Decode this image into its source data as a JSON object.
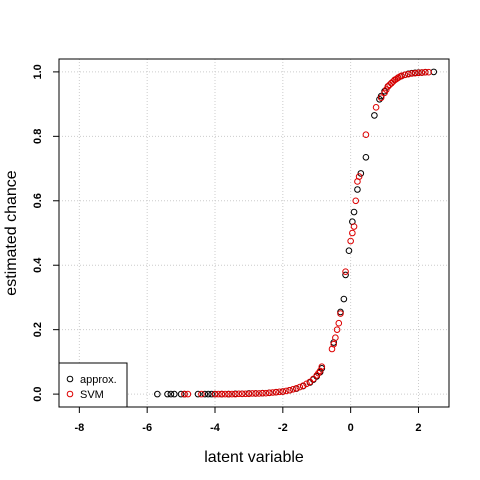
{
  "chart_data": {
    "type": "scatter",
    "xlabel": "latent variable",
    "ylabel": "estimated chance",
    "xlim": [
      -8.6,
      2.9
    ],
    "ylim": [
      -0.04,
      1.04
    ],
    "x_ticks": [
      -8,
      -6,
      -4,
      -2,
      0,
      2
    ],
    "y_ticks": [
      0.0,
      0.2,
      0.4,
      0.6,
      0.8,
      1.0
    ],
    "x_tick_labels": [
      "-8",
      "-6",
      "-4",
      "-2",
      "0",
      "2"
    ],
    "y_tick_labels": [
      "0.0",
      "0.2",
      "0.4",
      "0.6",
      "0.8",
      "1.0"
    ],
    "grid": true,
    "legend_position": "bottom-left",
    "series": [
      {
        "name": "approx.",
        "color": "#000000",
        "marker": "open-circle",
        "points": [
          [
            -5.7,
            0.0
          ],
          [
            -5.4,
            0.0
          ],
          [
            -5.3,
            0.0
          ],
          [
            -5.2,
            0.0
          ],
          [
            -5.0,
            0.0
          ],
          [
            -4.9,
            0.0
          ],
          [
            -4.5,
            0.0
          ],
          [
            -4.3,
            0.0
          ],
          [
            -4.2,
            0.0
          ],
          [
            -4.1,
            0.0
          ],
          [
            -4.0,
            0.0
          ],
          [
            -3.8,
            0.0
          ],
          [
            -3.6,
            0.0
          ],
          [
            -3.4,
            0.001
          ],
          [
            -3.2,
            0.001
          ],
          [
            -3.0,
            0.002
          ],
          [
            -2.8,
            0.002
          ],
          [
            -2.6,
            0.003
          ],
          [
            -2.4,
            0.004
          ],
          [
            -2.2,
            0.006
          ],
          [
            -2.0,
            0.008
          ],
          [
            -1.8,
            0.012
          ],
          [
            -1.6,
            0.017
          ],
          [
            -1.4,
            0.025
          ],
          [
            -1.2,
            0.036
          ],
          [
            -1.1,
            0.045
          ],
          [
            -1.0,
            0.055
          ],
          [
            -0.9,
            0.068
          ],
          [
            -0.85,
            0.08
          ],
          [
            -0.5,
            0.16
          ],
          [
            -0.3,
            0.255
          ],
          [
            -0.2,
            0.295
          ],
          [
            -0.15,
            0.37
          ],
          [
            -0.05,
            0.445
          ],
          [
            0.05,
            0.535
          ],
          [
            0.1,
            0.565
          ],
          [
            0.2,
            0.635
          ],
          [
            0.3,
            0.685
          ],
          [
            0.45,
            0.735
          ],
          [
            0.7,
            0.865
          ],
          [
            0.85,
            0.915
          ],
          [
            0.9,
            0.925
          ],
          [
            1.0,
            0.94
          ],
          [
            1.1,
            0.955
          ],
          [
            1.2,
            0.965
          ],
          [
            1.3,
            0.975
          ],
          [
            1.4,
            0.982
          ],
          [
            1.5,
            0.987
          ],
          [
            1.6,
            0.991
          ],
          [
            1.7,
            0.994
          ],
          [
            1.8,
            0.996
          ],
          [
            1.9,
            0.997
          ],
          [
            2.0,
            0.998
          ],
          [
            2.1,
            0.998
          ],
          [
            2.2,
            0.999
          ],
          [
            2.45,
            1.0
          ]
        ]
      },
      {
        "name": "SVM",
        "color": "#dd0000",
        "marker": "open-circle",
        "points": [
          [
            -4.9,
            0.0
          ],
          [
            -4.8,
            0.0
          ],
          [
            -4.4,
            0.0
          ],
          [
            -4.0,
            0.0
          ],
          [
            -3.9,
            0.0
          ],
          [
            -3.8,
            0.0
          ],
          [
            -3.7,
            0.0
          ],
          [
            -3.6,
            0.0
          ],
          [
            -3.5,
            0.0
          ],
          [
            -3.4,
            0.0
          ],
          [
            -3.3,
            0.001
          ],
          [
            -3.2,
            0.001
          ],
          [
            -3.1,
            0.001
          ],
          [
            -3.0,
            0.001
          ],
          [
            -2.9,
            0.002
          ],
          [
            -2.8,
            0.002
          ],
          [
            -2.7,
            0.002
          ],
          [
            -2.6,
            0.003
          ],
          [
            -2.5,
            0.003
          ],
          [
            -2.4,
            0.004
          ],
          [
            -2.3,
            0.005
          ],
          [
            -2.2,
            0.006
          ],
          [
            -2.1,
            0.007
          ],
          [
            -2.0,
            0.008
          ],
          [
            -1.9,
            0.01
          ],
          [
            -1.8,
            0.012
          ],
          [
            -1.7,
            0.015
          ],
          [
            -1.6,
            0.018
          ],
          [
            -1.5,
            0.022
          ],
          [
            -1.4,
            0.026
          ],
          [
            -1.3,
            0.032
          ],
          [
            -1.2,
            0.038
          ],
          [
            -1.1,
            0.047
          ],
          [
            -1.0,
            0.058
          ],
          [
            -0.95,
            0.065
          ],
          [
            -0.9,
            0.072
          ],
          [
            -0.85,
            0.085
          ],
          [
            -0.55,
            0.14
          ],
          [
            -0.5,
            0.155
          ],
          [
            -0.45,
            0.175
          ],
          [
            -0.4,
            0.2
          ],
          [
            -0.35,
            0.22
          ],
          [
            -0.3,
            0.25
          ],
          [
            -0.15,
            0.38
          ],
          [
            0.0,
            0.475
          ],
          [
            0.05,
            0.5
          ],
          [
            0.1,
            0.52
          ],
          [
            0.15,
            0.6
          ],
          [
            0.2,
            0.66
          ],
          [
            0.25,
            0.675
          ],
          [
            0.45,
            0.805
          ],
          [
            0.75,
            0.89
          ],
          [
            0.9,
            0.92
          ],
          [
            1.0,
            0.935
          ],
          [
            1.05,
            0.945
          ],
          [
            1.1,
            0.955
          ],
          [
            1.15,
            0.96
          ],
          [
            1.2,
            0.965
          ],
          [
            1.25,
            0.97
          ],
          [
            1.3,
            0.975
          ],
          [
            1.35,
            0.978
          ],
          [
            1.4,
            0.982
          ],
          [
            1.45,
            0.985
          ],
          [
            1.5,
            0.988
          ],
          [
            1.6,
            0.991
          ],
          [
            1.7,
            0.993
          ],
          [
            1.8,
            0.995
          ],
          [
            1.9,
            0.996
          ],
          [
            2.0,
            0.997
          ],
          [
            2.1,
            0.998
          ],
          [
            2.2,
            0.999
          ],
          [
            2.3,
            0.999
          ]
        ]
      }
    ]
  }
}
